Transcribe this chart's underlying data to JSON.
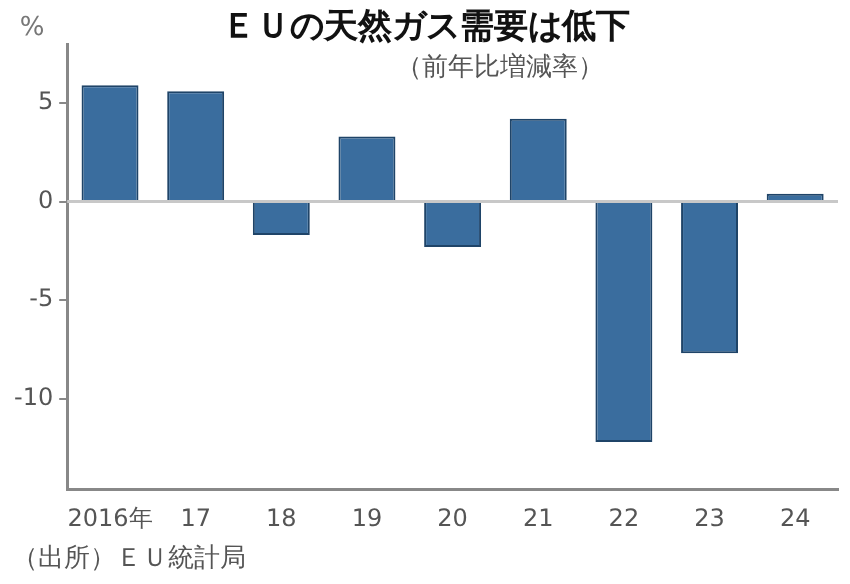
{
  "chart_data": {
    "type": "bar",
    "title": "ＥＵの天然ガス需要は低下",
    "subtitle": "（前年比増減率）",
    "ylabel": "%",
    "categories": [
      "2016年",
      "17",
      "18",
      "19",
      "20",
      "21",
      "22",
      "23",
      "24"
    ],
    "values": [
      5.9,
      5.6,
      -1.7,
      3.3,
      -2.3,
      4.2,
      -12.2,
      -7.7,
      0.4
    ],
    "color": "#3a6d9e",
    "ylim": [
      -14.6,
      8
    ],
    "yticks": [
      -10,
      -5,
      0,
      5
    ],
    "ref_lines": [
      {
        "axis": "y",
        "value": 0,
        "color": "#c8c8c8"
      }
    ],
    "grid": false,
    "legend": false,
    "annotations": [
      "（出所）ＥＵ統計局"
    ]
  }
}
